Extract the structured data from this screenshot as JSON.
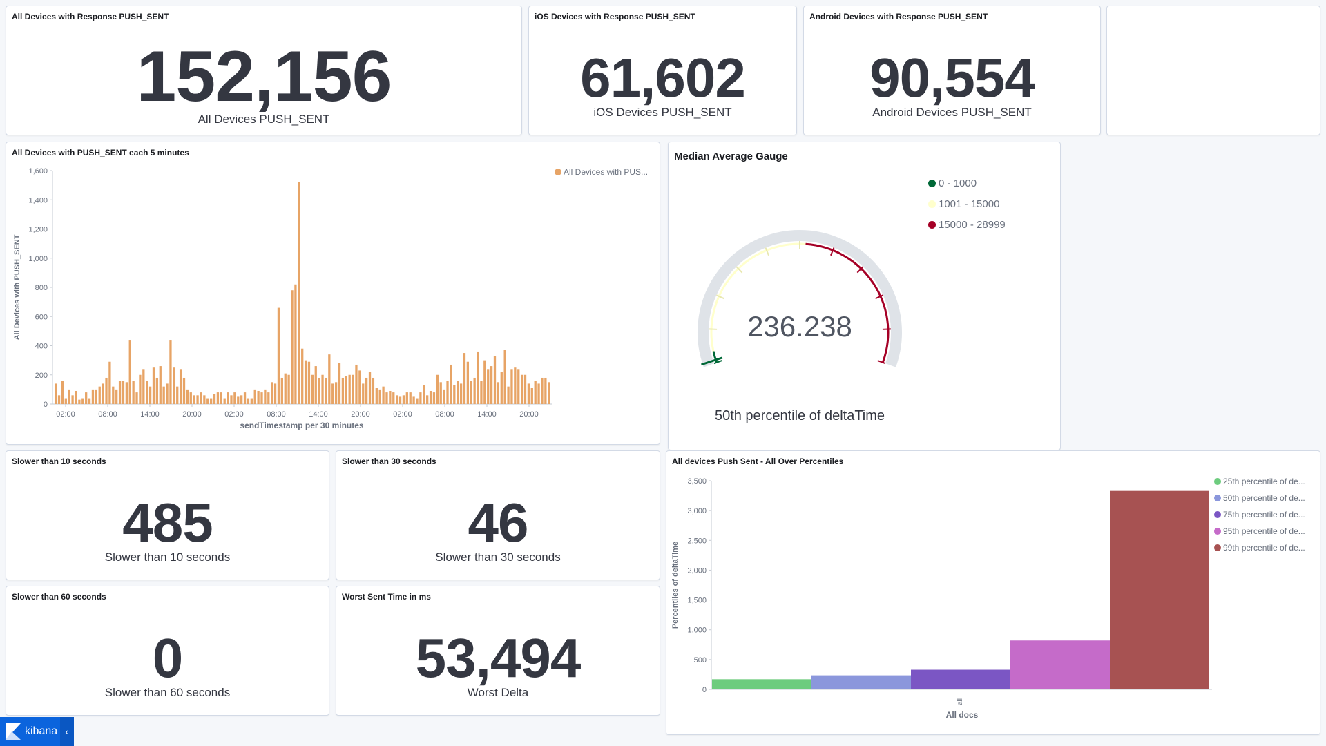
{
  "panels": {
    "all_devices": {
      "title": "All Devices with Response PUSH_SENT",
      "value": "152,156",
      "label": "All Devices PUSH_SENT"
    },
    "ios_devices": {
      "title": "iOS Devices with Response PUSH_SENT",
      "value": "61,602",
      "label": "iOS Devices PUSH_SENT"
    },
    "android_devices": {
      "title": "Android Devices with Response PUSH_SENT",
      "value": "90,554",
      "label": "Android Devices PUSH_SENT"
    },
    "slower_10": {
      "title": "Slower than 10 seconds",
      "value": "485",
      "label": "Slower than 10 seconds"
    },
    "slower_30": {
      "title": "Slower than 30 seconds",
      "value": "46",
      "label": "Slower than 30 seconds"
    },
    "slower_60": {
      "title": "Slower than 60 seconds",
      "value": "0",
      "label": "Slower than 60 seconds"
    },
    "worst_sent": {
      "title": "Worst Sent Time in ms",
      "value": "53,494",
      "label": "Worst Delta"
    }
  },
  "gauge": {
    "title": "Median Average Gauge",
    "value": "236.238",
    "numeric_value": 236.238,
    "range_max": 28999,
    "sublabel": "50th percentile of deltaTime",
    "ranges": [
      {
        "label": "0 - 1000",
        "color": "#006837"
      },
      {
        "label": "1001 - 15000",
        "color": "#ffffcc"
      },
      {
        "label": "15000 - 28999",
        "color": "#a50026"
      }
    ]
  },
  "kibana": {
    "name": "kibana"
  },
  "chart_data": [
    {
      "type": "bar",
      "title": "All Devices with PUSH_SENT each 5 minutes",
      "xlabel": "sendTimestamp per 30 minutes",
      "ylabel": "All Devices with PUSH_SENT",
      "legend": "All Devices with PUS...",
      "legend_position": "top-right",
      "color": "#e7a466",
      "ylim": [
        0,
        1600
      ],
      "yticks": [
        "0",
        "200",
        "400",
        "600",
        "800",
        "1,000",
        "1,200",
        "1,400",
        "1,600"
      ],
      "xticks": [
        "02:00",
        "08:00",
        "14:00",
        "20:00",
        "02:00",
        "08:00",
        "14:00",
        "20:00",
        "02:00",
        "08:00",
        "14:00",
        "20:00"
      ],
      "values": [
        140,
        60,
        160,
        40,
        100,
        60,
        90,
        30,
        40,
        80,
        40,
        100,
        100,
        120,
        140,
        180,
        290,
        120,
        100,
        160,
        160,
        150,
        440,
        160,
        80,
        200,
        240,
        160,
        120,
        250,
        180,
        260,
        120,
        140,
        440,
        250,
        120,
        240,
        180,
        100,
        80,
        60,
        60,
        80,
        60,
        40,
        40,
        70,
        80,
        80,
        40,
        80,
        60,
        80,
        50,
        60,
        80,
        40,
        40,
        100,
        90,
        80,
        100,
        80,
        150,
        140,
        660,
        180,
        210,
        200,
        780,
        820,
        1520,
        380,
        300,
        290,
        200,
        260,
        180,
        200,
        180,
        340,
        140,
        150,
        280,
        180,
        190,
        200,
        200,
        270,
        230,
        140,
        180,
        220,
        180,
        110,
        100,
        120,
        80,
        90,
        80,
        60,
        50,
        60,
        80,
        80,
        50,
        40,
        80,
        130,
        60,
        90,
        80,
        200,
        150,
        100,
        160,
        270,
        130,
        160,
        140,
        350,
        290,
        160,
        180,
        360,
        160,
        300,
        240,
        260,
        330,
        150,
        220,
        370,
        120,
        240,
        250,
        240,
        200,
        200,
        140,
        110,
        160,
        140,
        180,
        180,
        150
      ]
    },
    {
      "type": "bar",
      "title": "All devices Push Sent - All Over Percentiles",
      "xlabel": "All docs",
      "ylabel": "Percentiles of deltaTime",
      "categories": [
        "all"
      ],
      "ylim": [
        0,
        3500
      ],
      "yticks": [
        "0",
        "500",
        "1,000",
        "1,500",
        "2,000",
        "2,500",
        "3,000",
        "3,500"
      ],
      "legend_position": "top-right",
      "series": [
        {
          "name": "25th percentile of de...",
          "values": [
            170
          ],
          "color": "#6dcc7e"
        },
        {
          "name": "50th percentile of de...",
          "values": [
            236.238
          ],
          "color": "#8b97dc"
        },
        {
          "name": "75th percentile of de...",
          "values": [
            330
          ],
          "color": "#7b56c4"
        },
        {
          "name": "95th percentile of de...",
          "values": [
            820
          ],
          "color": "#c56bc9"
        },
        {
          "name": "99th percentile of de...",
          "values": [
            3330
          ],
          "color": "#a75252"
        }
      ]
    }
  ]
}
